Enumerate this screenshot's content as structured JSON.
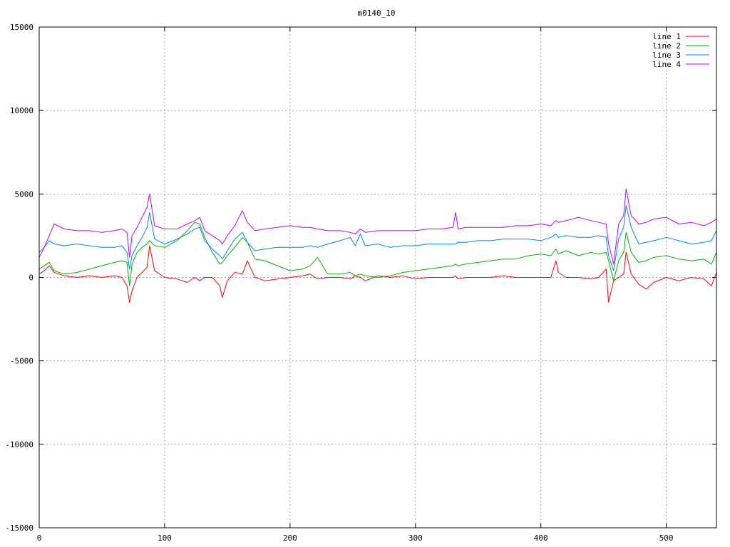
{
  "chart_data": {
    "type": "line",
    "title": "m0140_10",
    "xlabel": "",
    "ylabel": "",
    "xlim": [
      0,
      540
    ],
    "ylim": [
      -15000,
      15000
    ],
    "x_ticks": [
      0,
      100,
      200,
      300,
      400,
      500
    ],
    "y_ticks": [
      -15000,
      -10000,
      -5000,
      0,
      5000,
      10000,
      15000
    ],
    "grid": true,
    "legend_position": "top-right",
    "x": [
      0,
      4,
      8,
      12,
      20,
      30,
      40,
      50,
      60,
      66,
      70,
      72,
      74,
      78,
      82,
      86,
      88,
      92,
      100,
      110,
      118,
      124,
      128,
      132,
      138,
      144,
      146,
      150,
      156,
      162,
      166,
      172,
      180,
      190,
      200,
      210,
      216,
      222,
      230,
      240,
      248,
      252,
      256,
      260,
      270,
      280,
      290,
      300,
      310,
      320,
      330,
      332,
      334,
      340,
      350,
      360,
      370,
      380,
      390,
      400,
      408,
      412,
      414,
      420,
      430,
      440,
      446,
      452,
      454,
      458,
      462,
      466,
      468,
      472,
      478,
      484,
      490,
      500,
      510,
      520,
      530,
      536,
      540
    ],
    "series": [
      {
        "name": "line 1",
        "color": "#ff0000",
        "values": [
          200,
          400,
          700,
          300,
          100,
          0,
          100,
          0,
          100,
          0,
          -500,
          -1500,
          -800,
          0,
          300,
          600,
          1900,
          400,
          0,
          -100,
          -300,
          0,
          -200,
          0,
          0,
          -500,
          -1200,
          -200,
          300,
          200,
          1000,
          0,
          -200,
          -100,
          0,
          100,
          200,
          -100,
          0,
          0,
          -100,
          100,
          0,
          -200,
          100,
          0,
          100,
          -100,
          0,
          0,
          0,
          100,
          -100,
          0,
          0,
          0,
          100,
          0,
          0,
          0,
          0,
          1000,
          300,
          0,
          0,
          -100,
          0,
          500,
          -1500,
          -200,
          0,
          200,
          1500,
          200,
          -400,
          -700,
          -300,
          0,
          -200,
          0,
          -100,
          -500,
          300
        ]
      },
      {
        "name": "line 2",
        "color": "#00b000",
        "values": [
          500,
          700,
          900,
          400,
          200,
          300,
          500,
          700,
          900,
          1000,
          900,
          -500,
          800,
          1500,
          1800,
          2000,
          2200,
          1900,
          1800,
          2200,
          2800,
          3300,
          3200,
          2400,
          1500,
          800,
          900,
          1300,
          1800,
          2400,
          2100,
          1100,
          1000,
          700,
          400,
          500,
          700,
          1200,
          200,
          200,
          300,
          100,
          200,
          100,
          0,
          100,
          300,
          400,
          500,
          600,
          700,
          800,
          700,
          800,
          900,
          1000,
          1100,
          1100,
          1300,
          1400,
          1300,
          1700,
          1400,
          1600,
          1300,
          1500,
          1400,
          1500,
          1000,
          -200,
          1000,
          1500,
          2700,
          1500,
          900,
          1000,
          1200,
          1300,
          1100,
          1000,
          1100,
          800,
          1500
        ]
      },
      {
        "name": "line 3",
        "color": "#0080ff",
        "values": [
          1500,
          1800,
          2200,
          2000,
          1900,
          2000,
          1900,
          1800,
          1800,
          1900,
          1500,
          500,
          1300,
          1900,
          2400,
          3000,
          3900,
          2300,
          2000,
          2300,
          2600,
          2900,
          3000,
          2200,
          1700,
          1300,
          1100,
          1600,
          2300,
          2700,
          2100,
          1600,
          1700,
          1800,
          1800,
          1800,
          1900,
          1800,
          2000,
          2200,
          2400,
          1900,
          2600,
          1900,
          2000,
          1800,
          1900,
          1900,
          2000,
          2000,
          2000,
          2000,
          2100,
          2100,
          2200,
          2200,
          2300,
          2300,
          2300,
          2200,
          2400,
          2600,
          2400,
          2500,
          2400,
          2400,
          2500,
          2400,
          1300,
          400,
          2300,
          3000,
          4300,
          3000,
          2000,
          2100,
          2200,
          2400,
          2200,
          2000,
          2100,
          2200,
          2800
        ]
      },
      {
        "name": "line 4",
        "color": "#c000ff",
        "values": [
          1200,
          1800,
          2500,
          3200,
          2900,
          2800,
          2800,
          2700,
          2800,
          2900,
          2700,
          1200,
          2500,
          3000,
          3600,
          4200,
          5000,
          3100,
          2900,
          2900,
          3200,
          3400,
          3600,
          2800,
          2500,
          2200,
          2000,
          2500,
          3100,
          4000,
          3300,
          2800,
          2900,
          3000,
          3100,
          3000,
          3000,
          2900,
          2800,
          2800,
          2700,
          2600,
          2900,
          2700,
          2800,
          2800,
          2800,
          2800,
          2900,
          2900,
          3000,
          3900,
          2900,
          3000,
          3000,
          3000,
          3000,
          3100,
          3100,
          3200,
          3100,
          3400,
          3300,
          3400,
          3600,
          3400,
          3300,
          3200,
          2000,
          800,
          3200,
          3700,
          5300,
          3700,
          3200,
          3300,
          3500,
          3600,
          3200,
          3300,
          3100,
          3300,
          3500
        ]
      }
    ]
  }
}
